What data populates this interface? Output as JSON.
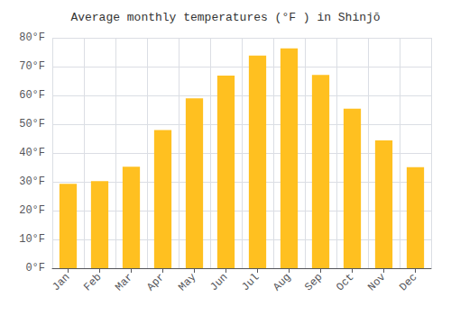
{
  "chart_data": {
    "type": "bar",
    "title": "Average monthly temperatures (°F ) in Shinjō",
    "categories": [
      "Jan",
      "Feb",
      "Mar",
      "Apr",
      "May",
      "Jun",
      "Jul",
      "Aug",
      "Sep",
      "Oct",
      "Nov",
      "Dec"
    ],
    "values": [
      29.3,
      30.2,
      35.2,
      48.0,
      59.0,
      66.9,
      73.8,
      76.3,
      67.1,
      55.4,
      44.4,
      35.1
    ],
    "color": "#FFC020",
    "ylim": [
      0,
      80
    ],
    "yticks": [
      {
        "value": 0,
        "label": "0°F"
      },
      {
        "value": 10,
        "label": "10°F"
      },
      {
        "value": 20,
        "label": "20°F"
      },
      {
        "value": 30,
        "label": "30°F"
      },
      {
        "value": 40,
        "label": "40°F"
      },
      {
        "value": 50,
        "label": "50°F"
      },
      {
        "value": 60,
        "label": "60°F"
      },
      {
        "value": 70,
        "label": "70°F"
      },
      {
        "value": 80,
        "label": "80°F"
      }
    ],
    "grid": true
  }
}
